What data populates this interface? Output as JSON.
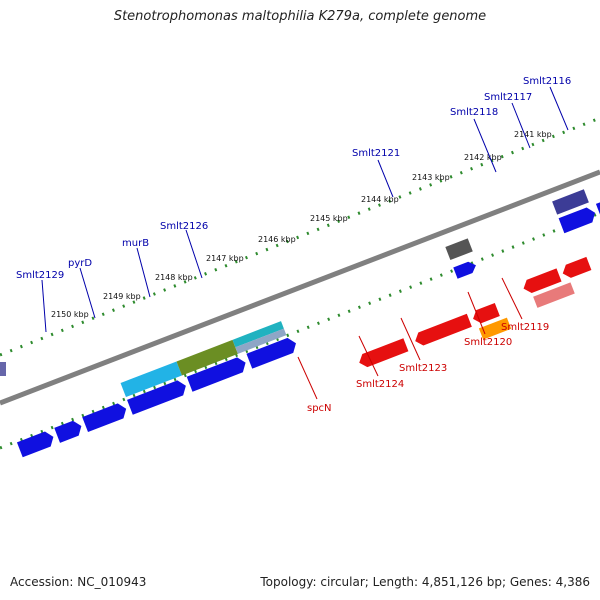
{
  "title": "Stenotrophomonas maltophilia K279a, complete genome",
  "footer": {
    "accession": "Accession: NC_010943",
    "stats": "Topology: circular; Length: 4,851,126 bp; Genes: 4,386"
  },
  "colors": {
    "backbone": "#808080",
    "ticks": "#2e8b2e",
    "forward_gene": "#0000e6",
    "reverse_gene": "#e60000",
    "forward_label": "#0000aa",
    "reverse_label": "#cc0000"
  },
  "ticks": [
    "2141 kbp",
    "2142 kbp",
    "2143 kbp",
    "2144 kbp",
    "2145 kbp",
    "2146 kbp",
    "2147 kbp",
    "2148 kbp",
    "2149 kbp",
    "2150 kbp"
  ],
  "forward_labels": [
    "Smlt2116",
    "Smlt2117",
    "Smlt2118",
    "Smlt2121",
    "Smlt2126",
    "murB",
    "pyrD",
    "Smlt2129"
  ],
  "reverse_labels": [
    "Smlt2119",
    "Smlt2120",
    "Smlt2123",
    "Smlt2124",
    "spcN"
  ]
}
